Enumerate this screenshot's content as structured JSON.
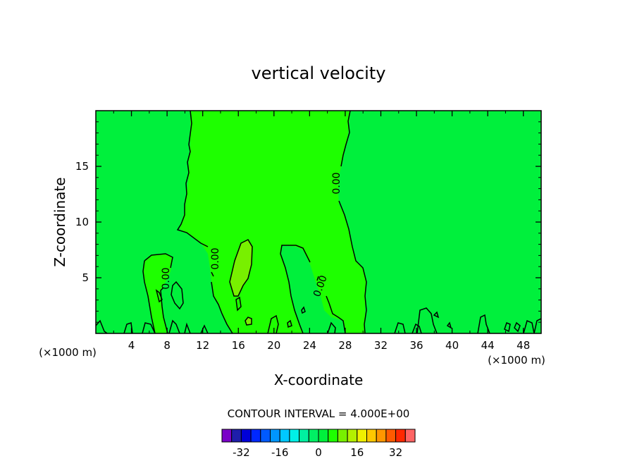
{
  "chart_data": {
    "type": "heatmap",
    "title": "vertical velocity",
    "xlabel": "X-coordinate",
    "ylabel": "Z-coordinate",
    "x_unit_left": "(×1000 m)",
    "x_unit_right": "(×1000 m)",
    "xlim": [
      0,
      50
    ],
    "ylim": [
      0,
      20
    ],
    "x_ticks": [
      4,
      8,
      12,
      16,
      20,
      24,
      28,
      32,
      36,
      40,
      44,
      48
    ],
    "y_ticks": [
      5,
      10,
      15
    ],
    "contour_labels": [
      "0.00",
      "0.00",
      "0.00",
      "0.00"
    ],
    "contour_interval_text": "CONTOUR INTERVAL = 4.000E+00",
    "colorbar": {
      "tick_labels": [
        "-32",
        "-16",
        "0",
        "16",
        "32"
      ],
      "tick_values": [
        -32,
        -16,
        0,
        16,
        32
      ],
      "bin_edges": [
        -40,
        -36,
        -32,
        -28,
        -24,
        -20,
        -16,
        -12,
        -8,
        -4,
        0,
        4,
        8,
        12,
        16,
        20,
        24,
        28,
        32,
        36,
        40
      ],
      "colors": [
        "#7a00c8",
        "#1e1eaa",
        "#0000d8",
        "#0028ff",
        "#005aff",
        "#0096ff",
        "#00c8ff",
        "#00f0e6",
        "#00f0a0",
        "#00f064",
        "#00f03c",
        "#1eff00",
        "#78f000",
        "#b4f000",
        "#f0f000",
        "#ffc800",
        "#ff9600",
        "#ff5a00",
        "#ff2800",
        "#ff6464",
        "#ff9696"
      ]
    },
    "field_colors": {
      "background": "#00f03c",
      "updraft_region": "#1eff00",
      "strong_updraft": "#78f000"
    }
  }
}
